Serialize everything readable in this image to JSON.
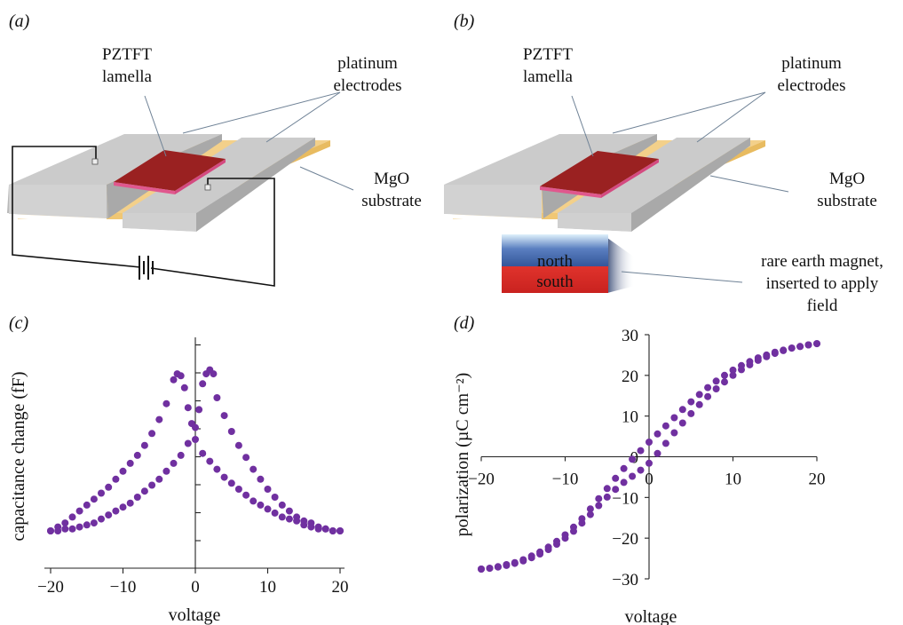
{
  "panels": {
    "a": {
      "label": "(a)",
      "lamella_l1": "PZTFT",
      "lamella_l2": "lamella",
      "electrodes_l1": "platinum",
      "electrodes_l2": "electrodes",
      "substrate_l1": "MgO",
      "substrate_l2": "substrate"
    },
    "b": {
      "label": "(b)",
      "lamella_l1": "PZTFT",
      "lamella_l2": "lamella",
      "electrodes_l1": "platinum",
      "electrodes_l2": "electrodes",
      "substrate_l1": "MgO",
      "substrate_l2": "substrate",
      "magnet_north": "north",
      "magnet_south": "south",
      "magnet_l1": "rare earth magnet,",
      "magnet_l2": "inserted to apply",
      "magnet_l3": "field"
    },
    "c": {
      "label": "(c)",
      "xlabel": "voltage",
      "ylabel": "capacitance change (fF)"
    },
    "d": {
      "label": "(d)",
      "xlabel": "voltage",
      "ylabel": "polarization (µC cm⁻²)"
    }
  },
  "colors": {
    "data_points": "#7030a0",
    "electrode": "#c8c8c8",
    "substrate": "#f3d08a",
    "lamella": "#9a2121",
    "lamella_edge": "#e0588e",
    "magnet_north": "#3f63a6",
    "magnet_south": "#d8322e"
  },
  "chart_data": [
    {
      "panel": "c",
      "type": "scatter",
      "xlabel": "voltage",
      "ylabel": "capacitance change (fF)",
      "xlim": [
        -20,
        20
      ],
      "ylim": [
        0,
        1
      ],
      "xticks": [
        "−20",
        "−10",
        "0",
        "10",
        "20"
      ],
      "yticks_labeled": false,
      "series": [
        {
          "x": [
            -20,
            -19,
            -18,
            -17,
            -16,
            -15,
            -14,
            -13,
            -12,
            -11,
            -10,
            -9,
            -8,
            -7,
            -6,
            -5,
            -4,
            -3,
            -2.5,
            -2,
            -1.5,
            -1,
            -0.5,
            0,
            1,
            2,
            3,
            4,
            5,
            6,
            7,
            8,
            9,
            10,
            11,
            12,
            13,
            14,
            15,
            16,
            17,
            18,
            19,
            20
          ],
          "y": [
            0.04,
            0.06,
            0.08,
            0.11,
            0.14,
            0.17,
            0.2,
            0.23,
            0.26,
            0.3,
            0.34,
            0.38,
            0.42,
            0.47,
            0.53,
            0.6,
            0.68,
            0.8,
            0.83,
            0.82,
            0.76,
            0.66,
            0.58,
            0.5,
            0.43,
            0.39,
            0.35,
            0.31,
            0.28,
            0.25,
            0.22,
            0.19,
            0.17,
            0.15,
            0.13,
            0.11,
            0.1,
            0.09,
            0.07,
            0.06,
            0.05,
            0.05,
            0.04,
            0.04
          ]
        },
        {
          "x": [
            -20,
            -19,
            -18,
            -17,
            -16,
            -15,
            -14,
            -13,
            -12,
            -11,
            -10,
            -9,
            -8,
            -7,
            -6,
            -5,
            -4,
            -3,
            -2,
            -1,
            0,
            0.5,
            1,
            1.5,
            2,
            2.5,
            3,
            4,
            5,
            6,
            7,
            8,
            9,
            10,
            11,
            12,
            13,
            14,
            15,
            16,
            17,
            18,
            19,
            20
          ],
          "y": [
            0.04,
            0.04,
            0.05,
            0.05,
            0.06,
            0.07,
            0.08,
            0.1,
            0.12,
            0.14,
            0.16,
            0.18,
            0.21,
            0.24,
            0.27,
            0.3,
            0.34,
            0.38,
            0.42,
            0.48,
            0.56,
            0.65,
            0.78,
            0.83,
            0.85,
            0.83,
            0.71,
            0.62,
            0.54,
            0.47,
            0.41,
            0.35,
            0.3,
            0.25,
            0.21,
            0.17,
            0.14,
            0.11,
            0.09,
            0.08,
            0.06,
            0.05,
            0.04,
            0.04
          ]
        }
      ]
    },
    {
      "panel": "d",
      "type": "scatter",
      "xlabel": "voltage",
      "ylabel": "polarization (µC cm⁻²)",
      "xlim": [
        -20,
        20
      ],
      "ylim": [
        -30,
        30
      ],
      "xticks": [
        "−20",
        "−10",
        "0",
        "10",
        "20"
      ],
      "yticks": [
        "30",
        "20",
        "10",
        "0",
        "−10",
        "−20",
        "−30"
      ],
      "series": [
        {
          "x": [
            20,
            19,
            18,
            17,
            16,
            15,
            14,
            13,
            12,
            11,
            10,
            9,
            8,
            7,
            6,
            5,
            4,
            3,
            2,
            1,
            0,
            -1,
            -2,
            -3,
            -4,
            -5,
            -6,
            -7,
            -8,
            -9,
            -10,
            -11,
            -12,
            -13,
            -14,
            -15,
            -16,
            -17,
            -18,
            -19,
            -20
          ],
          "y": [
            27.8,
            27.5,
            27.1,
            26.7,
            26.2,
            25.7,
            25.0,
            24.3,
            23.4,
            22.4,
            21.3,
            20.0,
            18.6,
            17.0,
            15.3,
            13.5,
            11.6,
            9.6,
            7.6,
            5.6,
            3.6,
            1.5,
            -0.6,
            -2.9,
            -5.3,
            -7.8,
            -10.3,
            -12.8,
            -15.2,
            -17.3,
            -19.2,
            -20.8,
            -22.2,
            -23.4,
            -24.4,
            -25.3,
            -26.0,
            -26.5,
            -27.0,
            -27.4,
            -27.6
          ]
        },
        {
          "x": [
            -20,
            -19,
            -18,
            -17,
            -16,
            -15,
            -14,
            -13,
            -12,
            -11,
            -10,
            -9,
            -8,
            -7,
            -6,
            -5,
            -4,
            -3,
            -2,
            -1,
            0,
            1,
            2,
            3,
            4,
            5,
            6,
            7,
            8,
            9,
            10,
            11,
            12,
            13,
            14,
            15,
            16,
            17,
            18,
            19,
            20
          ],
          "y": [
            -27.6,
            -27.4,
            -27.1,
            -26.7,
            -26.2,
            -25.6,
            -24.8,
            -23.9,
            -22.8,
            -21.5,
            -20.0,
            -18.3,
            -16.3,
            -14.2,
            -12.0,
            -9.9,
            -8.0,
            -6.3,
            -4.8,
            -3.3,
            -1.6,
            0.8,
            3.3,
            5.9,
            8.3,
            10.6,
            12.8,
            14.8,
            16.7,
            18.4,
            20.0,
            21.4,
            22.6,
            23.7,
            24.6,
            25.4,
            26.1,
            26.7,
            27.1,
            27.5,
            27.8
          ]
        }
      ]
    }
  ]
}
